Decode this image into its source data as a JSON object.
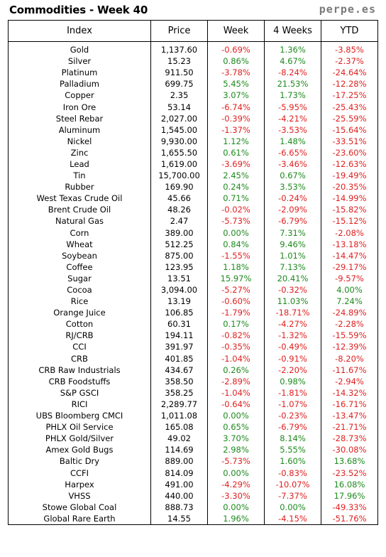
{
  "header": {
    "title": "Commodities - Week 40",
    "brand": "perpe.es"
  },
  "columns": [
    "Index",
    "Price",
    "Week",
    "4 Weeks",
    "YTD"
  ],
  "rows": [
    [
      "Gold",
      "1,137.60",
      "-0.69%",
      "1.36%",
      "-3.85%"
    ],
    [
      "Silver",
      "15.23",
      "0.86%",
      "4.67%",
      "-2.37%"
    ],
    [
      "Platinum",
      "911.50",
      "-3.78%",
      "-8.24%",
      "-24.64%"
    ],
    [
      "Palladium",
      "699.75",
      "5.45%",
      "21.53%",
      "-12.28%"
    ],
    [
      "Copper",
      "2.35",
      "3.07%",
      "1.73%",
      "-17.25%"
    ],
    [
      "Iron Ore",
      "53.14",
      "-6.74%",
      "-5.95%",
      "-25.43%"
    ],
    [
      "Steel Rebar",
      "2,027.00",
      "-0.39%",
      "-4.21%",
      "-25.59%"
    ],
    [
      "Aluminum",
      "1,545.00",
      "-1.37%",
      "-3.53%",
      "-15.64%"
    ],
    [
      "Nickel",
      "9,930.00",
      "1.12%",
      "1.48%",
      "-33.51%"
    ],
    [
      "Zinc",
      "1,655.50",
      "0.61%",
      "-6.65%",
      "-23.60%"
    ],
    [
      "Lead",
      "1,619.00",
      "-3.69%",
      "-3.46%",
      "-12.63%"
    ],
    [
      "Tin",
      "15,700.00",
      "2.45%",
      "0.67%",
      "-19.49%"
    ],
    [
      "Rubber",
      "169.90",
      "0.24%",
      "3.53%",
      "-20.35%"
    ],
    [
      "West Texas Crude Oil",
      "45.66",
      "0.71%",
      "-0.24%",
      "-14.99%"
    ],
    [
      "Brent Crude Oil",
      "48.26",
      "-0.02%",
      "-2.09%",
      "-15.82%"
    ],
    [
      "Natural Gas",
      "2.47",
      "-5.73%",
      "-6.79%",
      "-15.12%"
    ],
    [
      "Corn",
      "389.00",
      "0.00%",
      "7.31%",
      "-2.08%"
    ],
    [
      "Wheat",
      "512.25",
      "0.84%",
      "9.46%",
      "-13.18%"
    ],
    [
      "Soybean",
      "875.00",
      "-1.55%",
      "1.01%",
      "-14.47%"
    ],
    [
      "Coffee",
      "123.95",
      "1.18%",
      "7.13%",
      "-29.17%"
    ],
    [
      "Sugar",
      "13.51",
      "15.97%",
      "20.41%",
      "-9.57%"
    ],
    [
      "Cocoa",
      "3,094.00",
      "-5.27%",
      "-0.32%",
      "4.00%"
    ],
    [
      "Rice",
      "13.19",
      "-0.60%",
      "11.03%",
      "7.24%"
    ],
    [
      "Orange Juice",
      "106.85",
      "-1.79%",
      "-18.71%",
      "-24.89%"
    ],
    [
      "Cotton",
      "60.31",
      "0.17%",
      "-4.27%",
      "-2.28%"
    ],
    [
      "RJ/CRB",
      "194.11",
      "-0.82%",
      "-1.32%",
      "-15.59%"
    ],
    [
      "CCI",
      "391.97",
      "-0.35%",
      "-0.49%",
      "-12.39%"
    ],
    [
      "CRB",
      "401.85",
      "-1.04%",
      "-0.91%",
      "-8.20%"
    ],
    [
      "CRB Raw Industrials",
      "434.67",
      "0.26%",
      "-2.20%",
      "-11.67%"
    ],
    [
      "CRB Foodstuffs",
      "358.50",
      "-2.89%",
      "0.98%",
      "-2.94%"
    ],
    [
      "S&P GSCI",
      "358.25",
      "-1.04%",
      "-1.81%",
      "-14.32%"
    ],
    [
      "RICI",
      "2,289.77",
      "-0.64%",
      "-1.07%",
      "-16.71%"
    ],
    [
      "UBS Bloomberg CMCI",
      "1,011.08",
      "0.00%",
      "-0.23%",
      "-13.47%"
    ],
    [
      "PHLX Oil Service",
      "165.08",
      "0.65%",
      "-6.79%",
      "-21.71%"
    ],
    [
      "PHLX Gold/Silver",
      "49.02",
      "3.70%",
      "8.14%",
      "-28.73%"
    ],
    [
      "Amex Gold Bugs",
      "114.69",
      "2.98%",
      "5.55%",
      "-30.08%"
    ],
    [
      "Baltic Dry",
      "889.00",
      "-5.73%",
      "1.60%",
      "13.68%"
    ],
    [
      "CCFI",
      "814.09",
      "0.00%",
      "-0.83%",
      "-23.52%"
    ],
    [
      "Harpex",
      "491.00",
      "-4.29%",
      "-10.07%",
      "16.08%"
    ],
    [
      "VHSS",
      "440.00",
      "-3.30%",
      "-7.37%",
      "17.96%"
    ],
    [
      "Stowe Global Coal",
      "888.73",
      "0.00%",
      "0.00%",
      "-49.33%"
    ],
    [
      "Global Rare Earth",
      "14.55",
      "1.96%",
      "-4.15%",
      "-51.76%"
    ]
  ],
  "colors": {
    "positive": "#1e8a1e",
    "negative": "#e02020",
    "brand": "#7a7a7a"
  }
}
